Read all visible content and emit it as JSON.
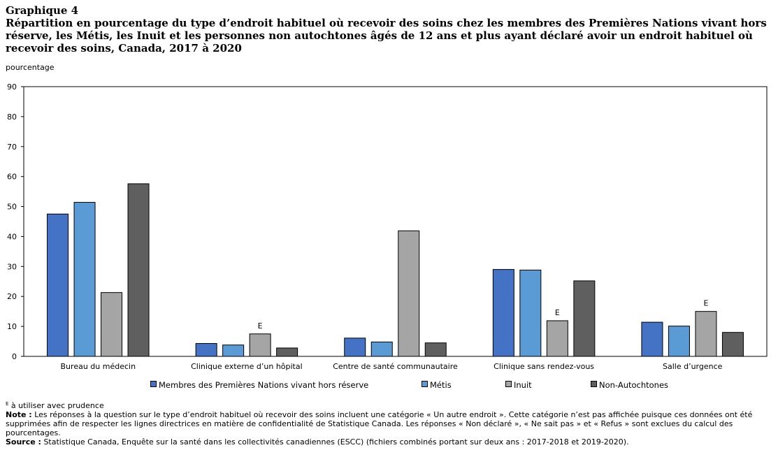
{
  "header": {
    "chart_number": "Graphique 4",
    "title": "Répartition en pourcentage du type d’endroit habituel où recevoir des soins chez les membres des Premières Nations vivant hors réserve, les Métis, les Inuit et les personnes non autochtones âgés de 12 ans et plus ayant déclaré avoir un endroit habituel où recevoir des soins, Canada, 2017 à 2020"
  },
  "chart_data": {
    "type": "bar",
    "ylabel": "pourcentage",
    "ylim": [
      0,
      90
    ],
    "yticks": [
      0,
      10,
      20,
      30,
      40,
      50,
      60,
      70,
      80,
      90
    ],
    "categories": [
      "Bureau du médecin",
      "Clinique externe d’un hôpital",
      "Centre de santé communautaire",
      "Clinique sans rendez-vous",
      "Salle d’urgence"
    ],
    "series": [
      {
        "name": "Membres des Premières Nations vivant hors réserve",
        "color": "#4472c4",
        "values": [
          47.5,
          4.3,
          6.1,
          29.0,
          11.4
        ],
        "flags": [
          "",
          "",
          "",
          "",
          ""
        ]
      },
      {
        "name": "Métis",
        "color": "#5b9bd5",
        "values": [
          51.4,
          3.8,
          4.8,
          28.8,
          10.1
        ],
        "flags": [
          "",
          "",
          "",
          "",
          ""
        ]
      },
      {
        "name": "Inuit",
        "color": "#a5a5a5",
        "values": [
          21.3,
          7.5,
          41.9,
          11.9,
          15.0
        ],
        "flags": [
          "",
          "E",
          "",
          "E",
          "E"
        ]
      },
      {
        "name": "Non-Autochtones",
        "color": "#5f5f5f",
        "values": [
          57.6,
          2.8,
          4.5,
          25.2,
          8.0
        ],
        "flags": [
          "",
          "",
          "",
          "",
          ""
        ]
      }
    ],
    "grid": false,
    "legend_position": "bottom"
  },
  "footer": {
    "e_symbol": "E",
    "e_text": " à utiliser avec prudence",
    "note_label": "Note :",
    "note_text": " Les réponses à la question sur le type d’endroit habituel où recevoir des soins incluent une catégorie « Un autre endroit ». Cette catégorie n’est pas affichée puisque ces données ont été supprimées afin de respecter les lignes directrices en matière de confidentialité de Statistique Canada. Les réponses « Non déclaré », « Ne sait pas » et « Refus » sont exclues du calcul des pourcentages.",
    "source_label": "Source :",
    "source_text": " Statistique Canada, Enquête sur la santé dans les collectivités canadiennes (ESCC) (fichiers combinés portant sur deux ans : 2017-2018 et 2019-2020)."
  }
}
